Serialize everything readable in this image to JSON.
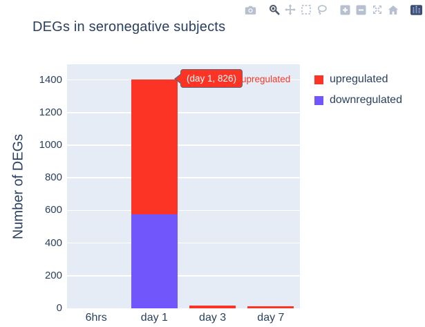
{
  "title": "DEGs in seronegative subjects",
  "modebar": {
    "groups": [
      [
        "camera-icon"
      ],
      [
        "zoom-icon",
        "pan-icon",
        "box-select-icon",
        "lasso-select-icon"
      ],
      [
        "zoom-in-icon",
        "zoom-out-icon",
        "autoscale-icon",
        "home-icon"
      ],
      [
        "plotly-logo"
      ]
    ],
    "active_icon": "zoom-icon",
    "icon_color": "#b6c0ce",
    "active_color": "#4f5b6b"
  },
  "chart_data": {
    "type": "bar",
    "stacked": true,
    "title": "DEGs in seronegative subjects",
    "xlabel": "",
    "ylabel": "Number of DEGs",
    "categories": [
      "6hrs",
      "day 1",
      "day 3",
      "day 7"
    ],
    "series": [
      {
        "name": "upregulated",
        "color": "#fc3426",
        "values": [
          0,
          826,
          17,
          11
        ]
      },
      {
        "name": "downregulated",
        "color": "#7156fb",
        "values": [
          0,
          578,
          0,
          0
        ]
      }
    ],
    "yticks": [
      0,
      200,
      400,
      600,
      800,
      1000,
      1200,
      1400
    ],
    "ylim": [
      0,
      1496
    ],
    "grid": true,
    "gridcolor": "#ffffff",
    "plot_bgcolor": "#e5ecf6",
    "legend_position": "right"
  },
  "legend": {
    "items": [
      {
        "label": "upregulated",
        "color": "#fc3426"
      },
      {
        "label": "downregulated",
        "color": "#7156fb"
      }
    ]
  },
  "tooltip": {
    "text": "(day 1, 826)",
    "trace": "upregulated",
    "bg": "#fc3426",
    "border": "#5b6673"
  },
  "colors": {
    "text": "#2a3f5f",
    "plot_bg": "#e5ecf6",
    "grid": "#ffffff"
  }
}
